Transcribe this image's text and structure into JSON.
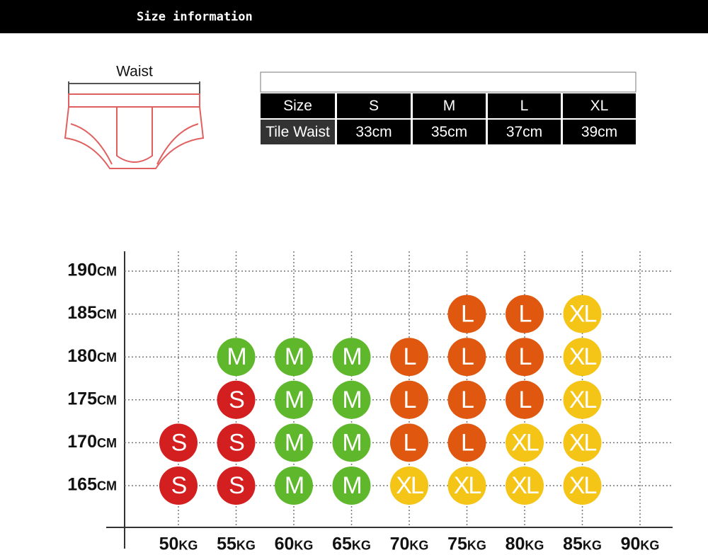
{
  "header": {
    "title": "Size information"
  },
  "diagram": {
    "label": "Waist"
  },
  "table": {
    "rows": [
      [
        "Size",
        "S",
        "M",
        "L",
        "XL"
      ],
      [
        "Tile Waist",
        "33cm",
        "35cm",
        "37cm",
        "39cm"
      ]
    ]
  },
  "size_chart": {
    "colors": {
      "S": "#d31f1f",
      "M": "#5fb82c",
      "L": "#e0580f",
      "XL": "#f4c416"
    },
    "weights": [
      "50kg",
      "55kg",
      "60kg",
      "65kg",
      "70kg",
      "75kg",
      "80kg",
      "85kg",
      "90kg"
    ],
    "rows": [
      {
        "height": "190cm",
        "cells": [
          null,
          null,
          null,
          null,
          null,
          null,
          null,
          null,
          null
        ]
      },
      {
        "height": "185cm",
        "cells": [
          null,
          null,
          null,
          null,
          null,
          "L",
          "L",
          "XL",
          null
        ]
      },
      {
        "height": "180cm",
        "cells": [
          null,
          "M",
          "M",
          "M",
          "L",
          "L",
          "L",
          "XL",
          null
        ]
      },
      {
        "height": "175cm",
        "cells": [
          null,
          "S",
          "M",
          "M",
          "L",
          "L",
          "L",
          "XL",
          null
        ]
      },
      {
        "height": "170cm",
        "cells": [
          "S",
          "S",
          "M",
          "M",
          "L",
          "L",
          "XL",
          "XL",
          null
        ]
      },
      {
        "height": "165cm",
        "cells": [
          "S",
          "S",
          "M",
          "M",
          "XL",
          "XL",
          "XL",
          "XL",
          null
        ]
      }
    ]
  }
}
